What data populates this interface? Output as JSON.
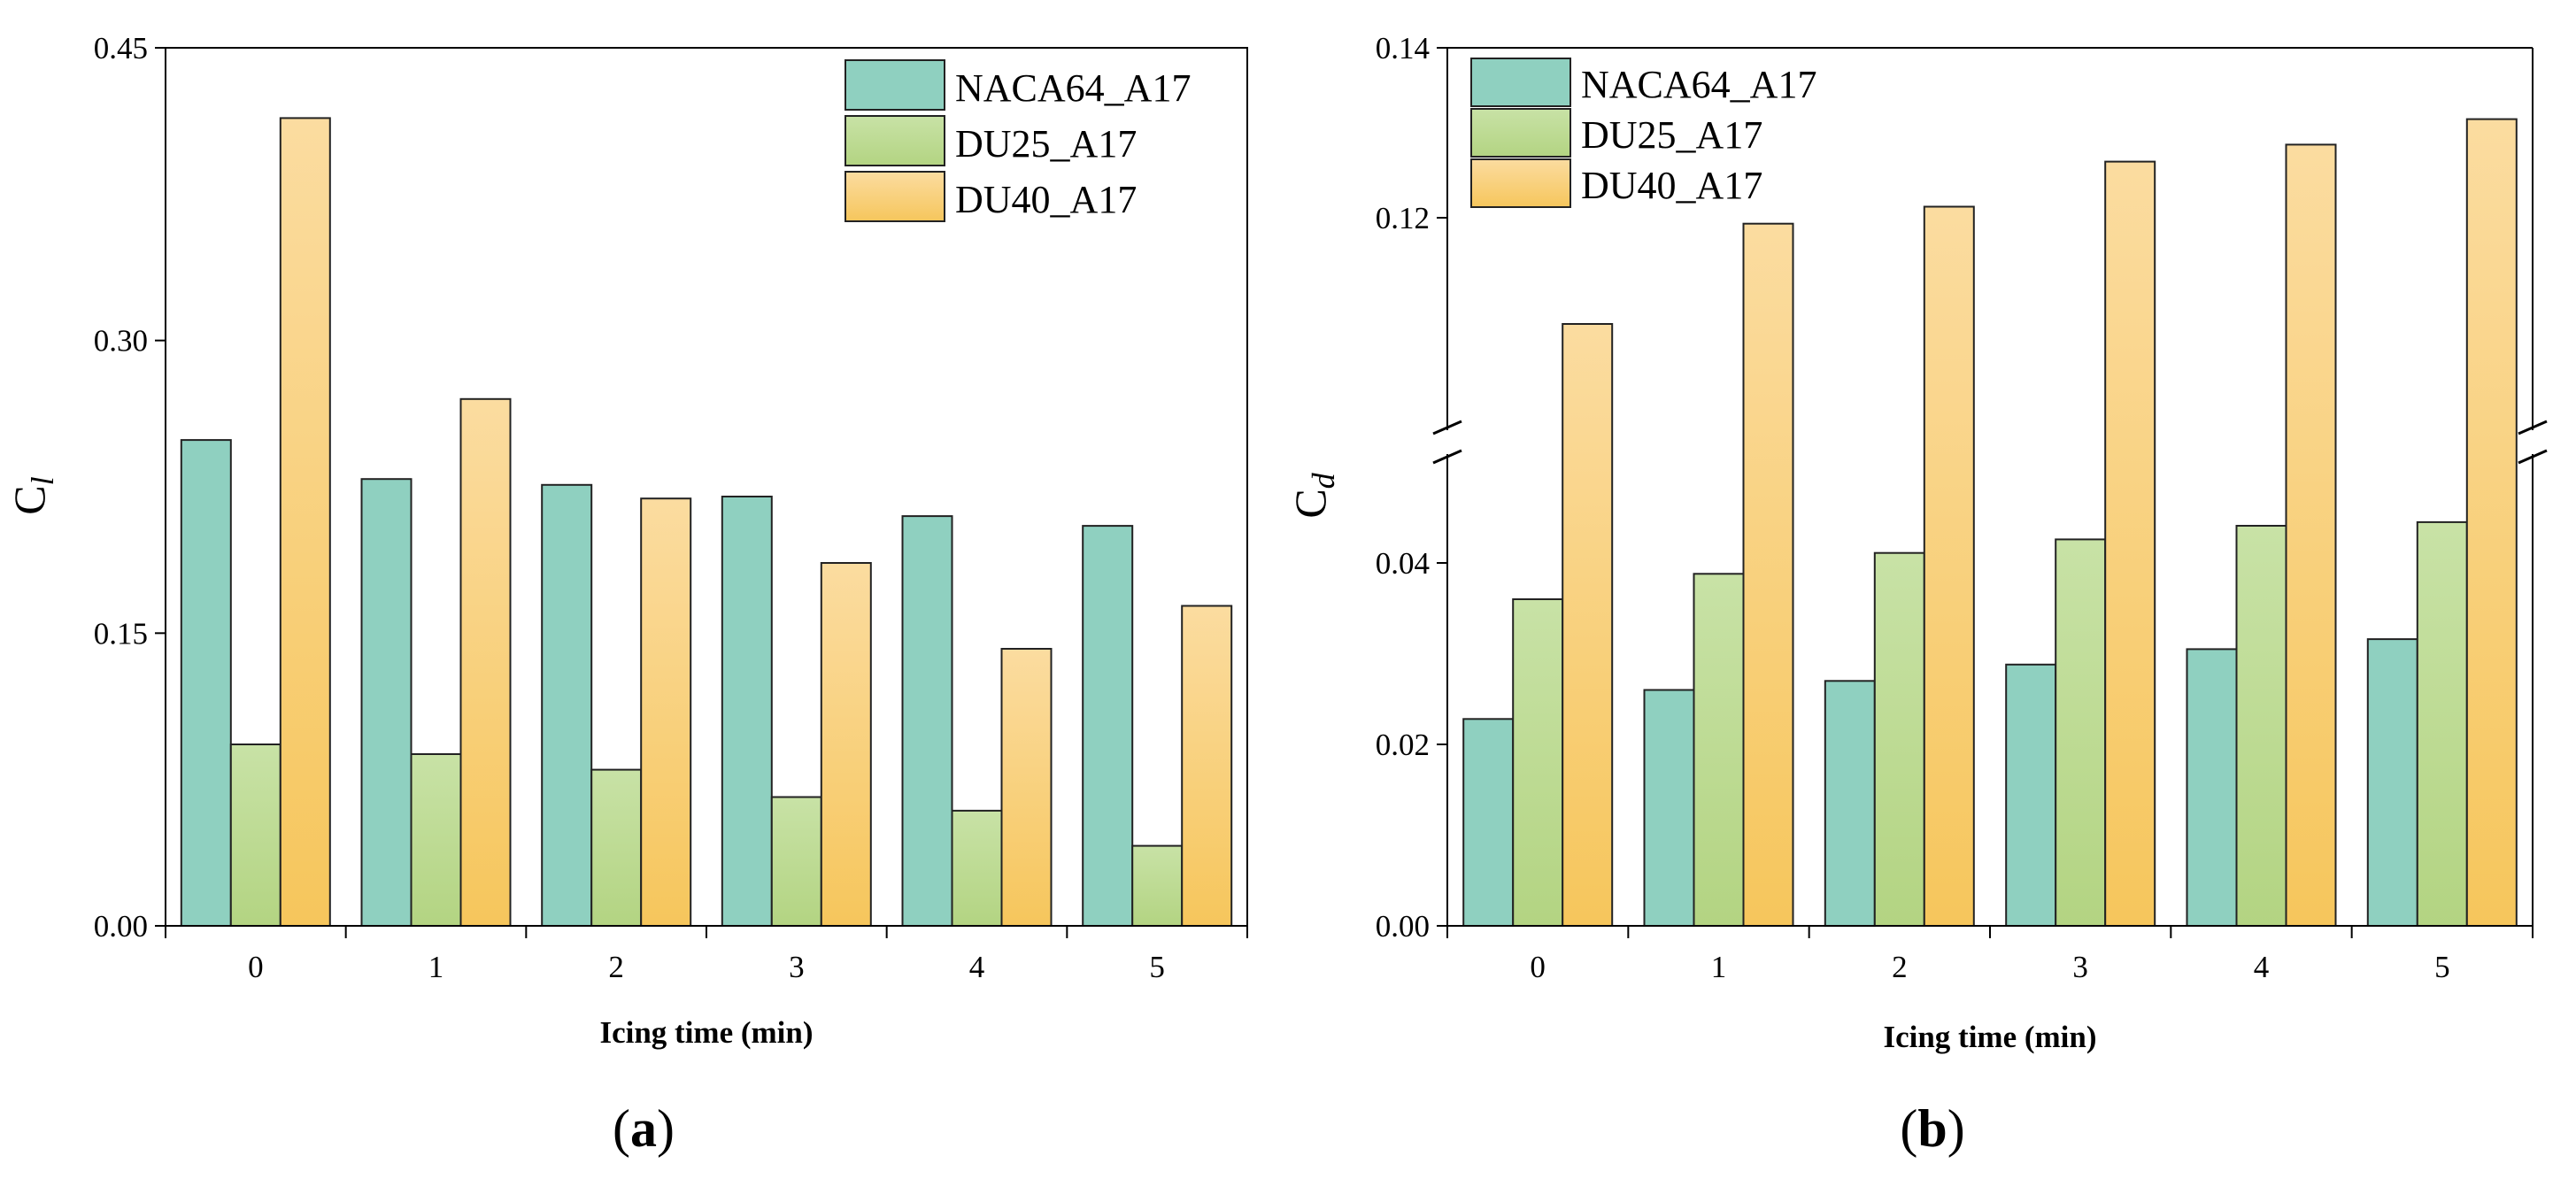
{
  "figure": {
    "panel_a_caption": {
      "open": "(",
      "letter": "a",
      "close": ")"
    },
    "panel_b_caption": {
      "open": "(",
      "letter": "b",
      "close": ")"
    }
  },
  "colors": {
    "NACA64_A17": "#8fd0c0",
    "DU25_A17": [
      "#c8e2a6",
      "#b3d482"
    ],
    "DU40_A17": [
      "#fbdca0",
      "#f6c65c"
    ],
    "bar_stroke": "#222222",
    "axis": "#000000"
  },
  "chart_data": [
    {
      "type": "bar",
      "panel": "a",
      "categories": [
        "0",
        "1",
        "2",
        "3",
        "4",
        "5"
      ],
      "series": [
        {
          "name": "NACA64_A17",
          "values": [
            0.249,
            0.229,
            0.226,
            0.22,
            0.21,
            0.205
          ]
        },
        {
          "name": "DU25_A17",
          "values": [
            0.093,
            0.088,
            0.08,
            0.066,
            0.059,
            0.041
          ]
        },
        {
          "name": "DU40_A17",
          "values": [
            0.414,
            0.27,
            0.219,
            0.186,
            0.142,
            0.164
          ]
        }
      ],
      "xlabel": "Icing time (min)",
      "ylabel": {
        "main": "C",
        "sub": "l"
      },
      "ylim": [
        0,
        0.45
      ],
      "yticks": [
        0,
        0.15,
        0.3,
        0.45
      ],
      "ytick_labels": [
        "0.00",
        "0.15",
        "0.30",
        "0.45"
      ],
      "legend": "top-right"
    },
    {
      "type": "bar",
      "panel": "b",
      "categories": [
        "0",
        "1",
        "2",
        "3",
        "4",
        "5"
      ],
      "series": [
        {
          "name": "NACA64_A17",
          "values": [
            0.0228,
            0.026,
            0.027,
            0.0288,
            0.0305,
            0.0316
          ]
        },
        {
          "name": "DU25_A17",
          "values": [
            0.036,
            0.0388,
            0.0411,
            0.0426,
            0.0441,
            0.0445
          ]
        },
        {
          "name": "DU40_A17",
          "values": [
            0.1075,
            0.1193,
            0.1213,
            0.1266,
            0.1286,
            0.1316
          ]
        }
      ],
      "xlabel": "Icing time (min)",
      "ylabel": {
        "main": "C",
        "sub": "d"
      },
      "axis_break": true,
      "lower_range": [
        0,
        0.052
      ],
      "upper_range": [
        0.095,
        0.14
      ],
      "yticks_lower": [
        0,
        0.02,
        0.04
      ],
      "ytick_labels_lower": [
        "0.00",
        "0.02",
        "0.04"
      ],
      "yticks_upper": [
        0.12,
        0.14
      ],
      "ytick_labels_upper": [
        "0.12",
        "0.14"
      ],
      "legend": "top-left"
    }
  ]
}
